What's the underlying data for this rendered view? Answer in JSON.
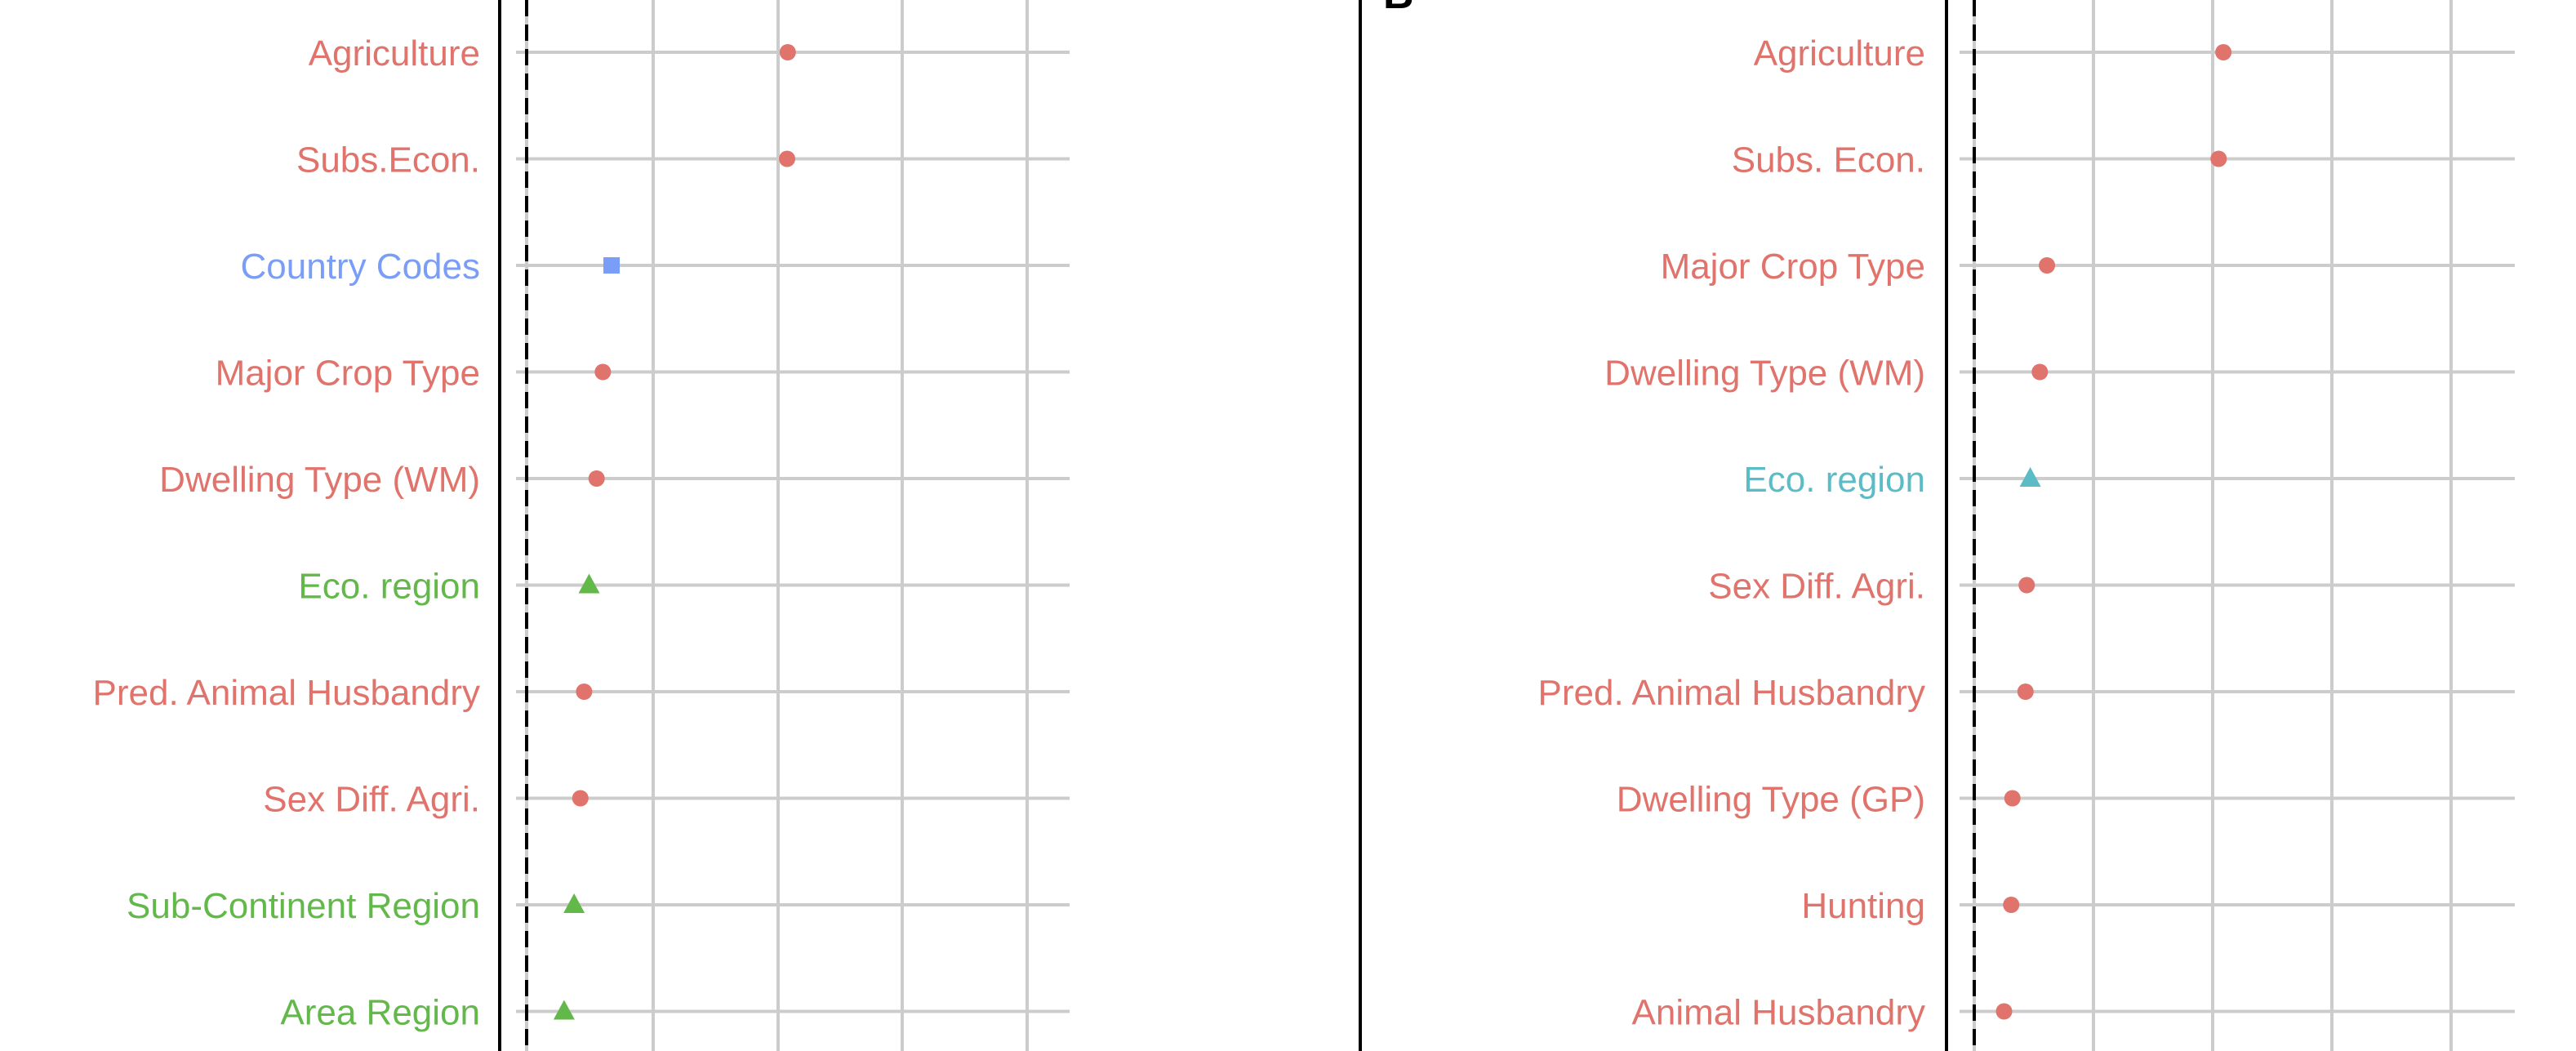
{
  "colors": {
    "red": "#e0736b",
    "blue": "#7a9df7",
    "green": "#62b94a",
    "teal": "#5bbcc7",
    "grid": "#cccccc",
    "axis": "#000000"
  },
  "chart_data": [
    {
      "type": "scatter",
      "panel_label": "",
      "title": "",
      "xlabel": "",
      "ylabel": "",
      "xlim": [
        -0.01,
        0.21
      ],
      "grid": true,
      "reference_line": {
        "x": 0,
        "style": "dashed"
      },
      "points": [
        {
          "label": "Agriculture",
          "value": 0.209,
          "group": "red",
          "marker": "circle"
        },
        {
          "label": "Subs.Econ.",
          "value": 0.2085,
          "group": "red",
          "marker": "circle"
        },
        {
          "label": "Country Codes",
          "value": 0.068,
          "group": "blue",
          "marker": "square"
        },
        {
          "label": "Major Crop Type",
          "value": 0.061,
          "group": "red",
          "marker": "circle"
        },
        {
          "label": "Dwelling Type (WM)",
          "value": 0.056,
          "group": "red",
          "marker": "circle"
        },
        {
          "label": "Eco. region",
          "value": 0.05,
          "group": "green",
          "marker": "triangle"
        },
        {
          "label": "Pred. Animal Husbandry",
          "value": 0.046,
          "group": "red",
          "marker": "circle"
        },
        {
          "label": "Sex Diff. Agri.",
          "value": 0.043,
          "group": "red",
          "marker": "circle"
        },
        {
          "label": "Sub-Continent Region",
          "value": 0.038,
          "group": "green",
          "marker": "triangle"
        },
        {
          "label": "Area Region",
          "value": 0.03,
          "group": "green",
          "marker": "triangle"
        }
      ]
    },
    {
      "type": "scatter",
      "panel_label": "B",
      "title": "",
      "xlabel": "",
      "ylabel": "",
      "xlim": [
        -0.01,
        0.21
      ],
      "grid": true,
      "reference_line": {
        "x": 0,
        "style": "dashed"
      },
      "points": [
        {
          "label": "Agriculture",
          "value": 0.209,
          "group": "red",
          "marker": "circle"
        },
        {
          "label": "Subs. Econ.",
          "value": 0.205,
          "group": "red",
          "marker": "circle"
        },
        {
          "label": "Major Crop Type",
          "value": 0.061,
          "group": "red",
          "marker": "circle"
        },
        {
          "label": "Dwelling Type (WM)",
          "value": 0.055,
          "group": "red",
          "marker": "circle"
        },
        {
          "label": "Eco. region",
          "value": 0.047,
          "group": "teal",
          "marker": "triangle"
        },
        {
          "label": "Sex Diff. Agri.",
          "value": 0.044,
          "group": "red",
          "marker": "circle"
        },
        {
          "label": "Pred. Animal Husbandry",
          "value": 0.043,
          "group": "red",
          "marker": "circle"
        },
        {
          "label": "Dwelling Type (GP)",
          "value": 0.032,
          "group": "red",
          "marker": "circle"
        },
        {
          "label": "Hunting",
          "value": 0.031,
          "group": "red",
          "marker": "circle"
        },
        {
          "label": "Animal Husbandry",
          "value": 0.025,
          "group": "red",
          "marker": "circle"
        }
      ]
    }
  ]
}
